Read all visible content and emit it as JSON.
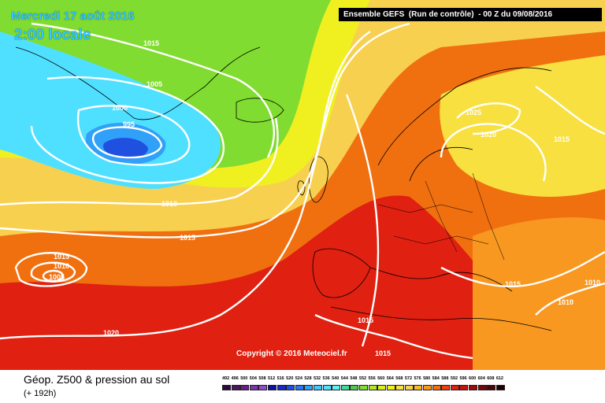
{
  "header": {
    "date": "Mercredi 17 août 2016",
    "time": "2:00 locale",
    "model": "Ensemble GEFS  (Run de contrôle)  - 00 Z du 09/08/2016"
  },
  "footer": {
    "parameter": "Géop. Z500 & pression au sol",
    "lead_time": "(+ 192h)",
    "copyright": "Copyright © 2016 Meteociel.fr"
  },
  "isobar_labels": [
    "1015",
    "1005",
    "1000",
    "995",
    "1010",
    "1015",
    "1015",
    "1010",
    "1005",
    "1020",
    "1025",
    "1020",
    "1015",
    "1015",
    "1010",
    "1010",
    "1015",
    "1015"
  ],
  "legend": {
    "values": [
      "492",
      "496",
      "500",
      "504",
      "508",
      "512",
      "516",
      "520",
      "524",
      "528",
      "532",
      "536",
      "540",
      "544",
      "548",
      "552",
      "556",
      "560",
      "564",
      "568",
      "572",
      "576",
      "580",
      "584",
      "588",
      "592",
      "596",
      "600",
      "604",
      "608",
      "612"
    ],
    "colors": [
      "#2b0a3d",
      "#4b1460",
      "#6a1d8a",
      "#7d35b0",
      "#8f4cd0",
      "#1010a0",
      "#1a2ac8",
      "#2050e0",
      "#2878f0",
      "#30a0f8",
      "#40c8ff",
      "#50e0ff",
      "#60f0f0",
      "#40d8a0",
      "#50c850",
      "#80dc30",
      "#b0e820",
      "#d8f020",
      "#f0f020",
      "#f8e040",
      "#f8d050",
      "#f8b830",
      "#f89820",
      "#f07010",
      "#f04010",
      "#e02010",
      "#c81010",
      "#a00808",
      "#780505",
      "#500303",
      "#200000"
    ]
  }
}
